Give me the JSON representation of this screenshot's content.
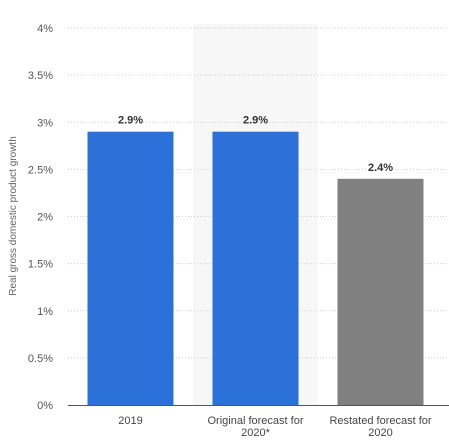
{
  "chart_data": {
    "type": "bar",
    "categories": [
      "2019",
      "Original forecast for\n2020*",
      "Restated forecast for\n2020"
    ],
    "values": [
      2.9,
      2.9,
      2.4
    ],
    "data_labels": [
      "2.9%",
      "2.9%",
      "2.4%"
    ],
    "bar_colors": [
      "#2b71d9",
      "#2b71d9",
      "#808080"
    ],
    "ylabel": "Real gross domestic product growth",
    "xlabel": "",
    "ylim": [
      0,
      4
    ],
    "yticks": [
      0,
      0.5,
      1,
      1.5,
      2,
      2.5,
      3,
      3.5,
      4
    ],
    "ytick_labels": [
      "0%",
      "0.5%",
      "1%",
      "1.5%",
      "2%",
      "2.5%",
      "3%",
      "3.5%",
      "4%"
    ],
    "grid": true,
    "highlight_band_color": "#f7f7f7",
    "highlighted_category_index": 1
  }
}
